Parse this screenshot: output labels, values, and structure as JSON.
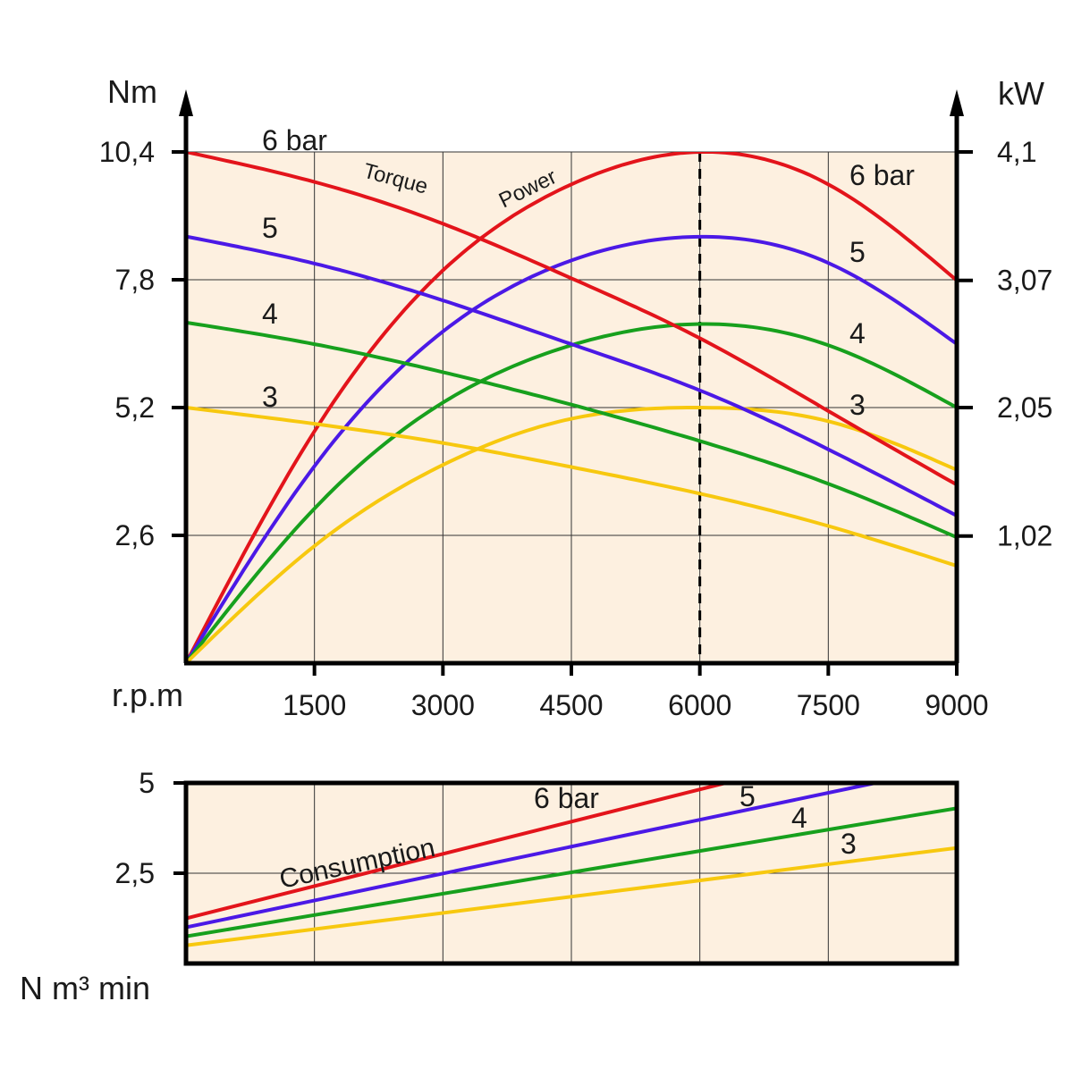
{
  "colors": {
    "background": "#fdf0e0",
    "grid": "#333333",
    "axis": "#000000",
    "p6": "#e3141b",
    "p5": "#4b19e6",
    "p4": "#17a01d",
    "p3": "#f7c80f"
  },
  "chart_data": [
    {
      "type": "line",
      "name": "performance",
      "xlabel": "r.p.m",
      "ylabel_left": "Nm",
      "ylabel_right": "kW",
      "x_ticks": [
        1500,
        3000,
        4500,
        6000,
        7500,
        9000
      ],
      "x_tick_labels": [
        "1500",
        "3000",
        "4500",
        "6000",
        "7500",
        "9000"
      ],
      "xlim": [
        0,
        9000
      ],
      "y_left_ticks": [
        2.6,
        5.2,
        7.8,
        10.4
      ],
      "y_left_tick_labels": [
        "2,6",
        "5,2",
        "7,8",
        "10,4"
      ],
      "y_left_lim": [
        0,
        10.4
      ],
      "y_right_ticks": [
        1.02,
        2.05,
        3.07,
        4.1
      ],
      "y_right_tick_labels": [
        "1,02",
        "2,05",
        "3,07",
        "4,1"
      ],
      "y_right_lim": [
        0,
        4.1
      ],
      "grid": true,
      "marker_line_x": 6000,
      "torque_label": "Torque",
      "power_label": "Power",
      "torque_series": [
        {
          "name": "6 bar",
          "label": "6 bar",
          "color_key": "p6",
          "x": [
            0,
            1500,
            3000,
            4500,
            6000,
            7500,
            9000
          ],
          "y": [
            10.4,
            9.79,
            8.94,
            7.83,
            6.61,
            5.13,
            3.63
          ]
        },
        {
          "name": "5",
          "label": "5",
          "color_key": "p5",
          "x": [
            0,
            1500,
            3000,
            4500,
            6000,
            7500,
            9000
          ],
          "y": [
            8.68,
            8.13,
            7.38,
            6.49,
            5.55,
            4.35,
            3.0
          ]
        },
        {
          "name": "4",
          "label": "4",
          "color_key": "p4",
          "x": [
            0,
            1500,
            3000,
            4500,
            6000,
            7500,
            9000
          ],
          "y": [
            6.93,
            6.49,
            5.92,
            5.26,
            4.52,
            3.65,
            2.56
          ]
        },
        {
          "name": "3",
          "label": "3",
          "color_key": "p3",
          "x": [
            0,
            1500,
            3000,
            4500,
            6000,
            7500,
            9000
          ],
          "y": [
            5.2,
            4.87,
            4.48,
            3.99,
            3.45,
            2.79,
            1.98
          ]
        }
      ],
      "power_series": [
        {
          "name": "6 bar",
          "label": "6 bar",
          "color_key": "p6",
          "x": [
            0,
            1500,
            3000,
            4500,
            6000,
            7500,
            9000
          ],
          "y": [
            0,
            1.86,
            3.15,
            3.84,
            4.1,
            3.84,
            3.07
          ]
        },
        {
          "name": "5",
          "label": "5",
          "color_key": "p5",
          "x": [
            0,
            1500,
            3000,
            4500,
            6000,
            7500,
            9000
          ],
          "y": [
            0,
            1.58,
            2.66,
            3.23,
            3.42,
            3.21,
            2.56
          ]
        },
        {
          "name": "4",
          "label": "4",
          "color_key": "p4",
          "x": [
            0,
            1500,
            3000,
            4500,
            6000,
            7500,
            9000
          ],
          "y": [
            0,
            1.24,
            2.09,
            2.55,
            2.72,
            2.55,
            2.05
          ]
        },
        {
          "name": "3",
          "label": "3",
          "color_key": "p3",
          "x": [
            0,
            1500,
            3000,
            4500,
            6000,
            7500,
            9000
          ],
          "y": [
            0,
            0.94,
            1.59,
            1.96,
            2.05,
            1.94,
            1.55
          ]
        }
      ]
    },
    {
      "type": "line",
      "name": "consumption",
      "ylabel": "N m³ min",
      "label": "Consumption",
      "xlim": [
        0,
        9000
      ],
      "ylim": [
        0,
        5
      ],
      "y_ticks": [
        2.5,
        5
      ],
      "y_tick_labels": [
        "2,5",
        "5"
      ],
      "grid": true,
      "series": [
        {
          "name": "6 bar",
          "label": "6 bar",
          "color_key": "p6",
          "x": [
            0,
            6300
          ],
          "y": [
            1.25,
            5.0
          ]
        },
        {
          "name": "5",
          "label": "5",
          "color_key": "p5",
          "x": [
            0,
            8050
          ],
          "y": [
            1.0,
            5.0
          ]
        },
        {
          "name": "4",
          "label": "4",
          "color_key": "p4",
          "x": [
            0,
            9000
          ],
          "y": [
            0.75,
            4.3
          ]
        },
        {
          "name": "3",
          "label": "3",
          "color_key": "p3",
          "x": [
            0,
            9000
          ],
          "y": [
            0.5,
            3.2
          ]
        }
      ]
    }
  ]
}
